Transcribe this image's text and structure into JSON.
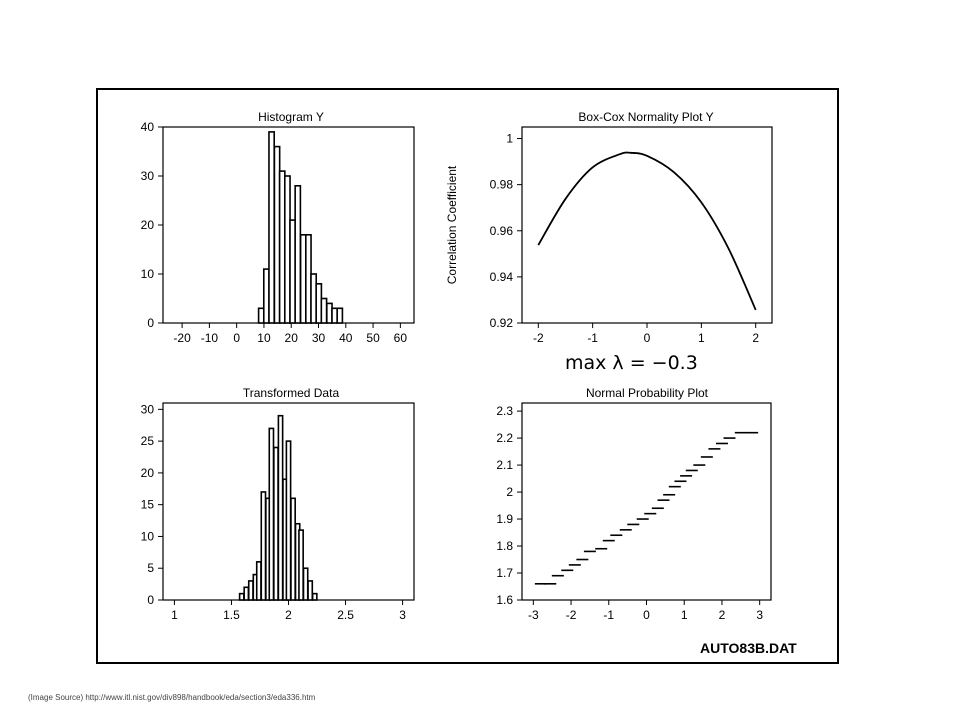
{
  "file_label": "AUTO83B.DAT",
  "source_note": "(Image Source) http://www.itl.nist.gov/div898/handbook/eda/section3/eda336.htm",
  "chart_data": [
    {
      "id": "hist-y",
      "type": "bar",
      "title": "Histogram Y",
      "xlabel": "",
      "ylabel": "",
      "xlim": [
        -27,
        65
      ],
      "ylim": [
        0,
        40
      ],
      "xticks": [
        -20,
        -10,
        0,
        10,
        20,
        30,
        40,
        50,
        60
      ],
      "yticks": [
        0,
        10,
        20,
        30,
        40
      ],
      "bin_width": 1.92,
      "bins": [
        {
          "x": 9.0,
          "value": 3
        },
        {
          "x": 10.9,
          "value": 11
        },
        {
          "x": 12.8,
          "value": 39
        },
        {
          "x": 14.8,
          "value": 36
        },
        {
          "x": 16.7,
          "value": 31
        },
        {
          "x": 18.6,
          "value": 30
        },
        {
          "x": 20.5,
          "value": 21
        },
        {
          "x": 22.4,
          "value": 28
        },
        {
          "x": 24.4,
          "value": 18
        },
        {
          "x": 26.3,
          "value": 18
        },
        {
          "x": 28.2,
          "value": 10
        },
        {
          "x": 30.1,
          "value": 8
        },
        {
          "x": 32.0,
          "value": 5
        },
        {
          "x": 34.0,
          "value": 4
        },
        {
          "x": 35.9,
          "value": 3
        },
        {
          "x": 37.8,
          "value": 3
        }
      ]
    },
    {
      "id": "boxcox",
      "type": "line",
      "title": "Box-Cox Normality Plot Y",
      "xlabel": "",
      "ylabel": "Correlation Coefficient",
      "xlim": [
        -2.3,
        2.3
      ],
      "ylim": [
        0.92,
        1.005
      ],
      "xticks": [
        -2,
        -1,
        0,
        1,
        2
      ],
      "yticks": [
        0.92,
        0.94,
        0.96,
        0.98,
        1
      ],
      "ytick_labels": [
        "0.92",
        "0.94",
        "0.96",
        "0.98",
        "1"
      ],
      "x": [
        -2,
        -1.5,
        -1,
        -0.5,
        -0.3,
        0,
        0.5,
        1,
        1.5,
        2
      ],
      "y": [
        0.9538,
        0.9738,
        0.9875,
        0.9932,
        0.9938,
        0.9925,
        0.9853,
        0.9723,
        0.9523,
        0.9257
      ],
      "annotation": "max λ = −0.3"
    },
    {
      "id": "hist-t",
      "type": "bar",
      "title": "Transformed Data",
      "xlabel": "",
      "ylabel": "",
      "xlim": [
        0.9,
        3.1
      ],
      "ylim": [
        0,
        31
      ],
      "xticks": [
        1,
        1.5,
        2,
        2.5,
        3
      ],
      "yticks": [
        0,
        5,
        10,
        15,
        20,
        25,
        30
      ],
      "bin_width": 0.037,
      "bins": [
        {
          "x": 1.59,
          "value": 1
        },
        {
          "x": 1.63,
          "value": 2
        },
        {
          "x": 1.67,
          "value": 3
        },
        {
          "x": 1.71,
          "value": 4
        },
        {
          "x": 1.74,
          "value": 6
        },
        {
          "x": 1.78,
          "value": 17
        },
        {
          "x": 1.82,
          "value": 16
        },
        {
          "x": 1.85,
          "value": 27
        },
        {
          "x": 1.89,
          "value": 24
        },
        {
          "x": 1.93,
          "value": 29
        },
        {
          "x": 1.97,
          "value": 19
        },
        {
          "x": 2.0,
          "value": 25
        },
        {
          "x": 2.04,
          "value": 16
        },
        {
          "x": 2.08,
          "value": 12
        },
        {
          "x": 2.11,
          "value": 11
        },
        {
          "x": 2.15,
          "value": 5
        },
        {
          "x": 2.19,
          "value": 3
        },
        {
          "x": 2.23,
          "value": 1
        }
      ]
    },
    {
      "id": "normprob",
      "type": "scatter",
      "title": "Normal Probability Plot",
      "xlabel": "",
      "ylabel": "",
      "xlim": [
        -3.3,
        3.3
      ],
      "ylim": [
        1.6,
        2.33
      ],
      "xticks": [
        -3,
        -2,
        -1,
        0,
        1,
        2,
        3
      ],
      "yticks": [
        1.6,
        1.7,
        1.8,
        1.9,
        2,
        2.1,
        2.2,
        2.3
      ],
      "ytick_labels": [
        "1.6",
        "1.7",
        "1.8",
        "1.9",
        "2",
        "2.1",
        "2.2",
        "2.3"
      ],
      "points": [
        [
          -2.8,
          1.66
        ],
        [
          -2.55,
          1.66
        ],
        [
          -2.35,
          1.69
        ],
        [
          -2.1,
          1.71
        ],
        [
          -1.9,
          1.73
        ],
        [
          -1.7,
          1.75
        ],
        [
          -1.5,
          1.78
        ],
        [
          -1.2,
          1.79
        ],
        [
          -1.0,
          1.82
        ],
        [
          -0.8,
          1.84
        ],
        [
          -0.55,
          1.86
        ],
        [
          -0.35,
          1.88
        ],
        [
          -0.1,
          1.9
        ],
        [
          0.1,
          1.92
        ],
        [
          0.3,
          1.94
        ],
        [
          0.45,
          1.97
        ],
        [
          0.6,
          1.99
        ],
        [
          0.75,
          2.02
        ],
        [
          0.9,
          2.04
        ],
        [
          1.05,
          2.06
        ],
        [
          1.2,
          2.08
        ],
        [
          1.4,
          2.1
        ],
        [
          1.6,
          2.13
        ],
        [
          1.8,
          2.16
        ],
        [
          2.0,
          2.18
        ],
        [
          2.2,
          2.2
        ],
        [
          2.5,
          2.22
        ],
        [
          2.8,
          2.22
        ]
      ]
    }
  ]
}
